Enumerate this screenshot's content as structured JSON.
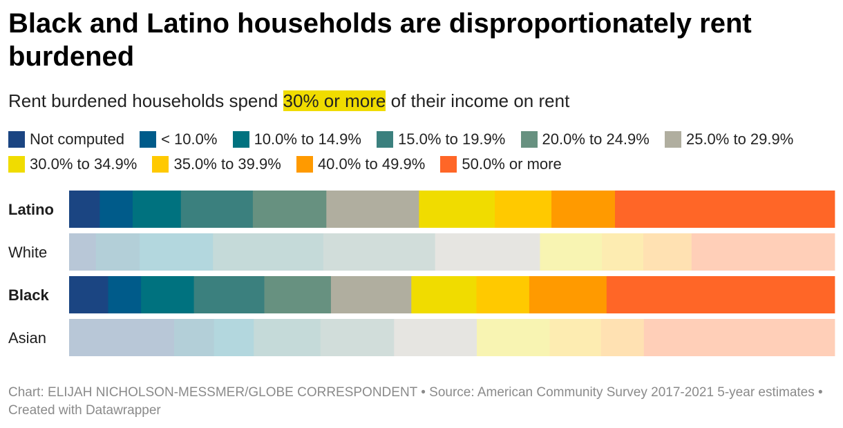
{
  "title": "Black and Latino households are disproportionately rent burdened",
  "subtitle": {
    "before": "Rent burdened households spend ",
    "highlight": "30% or more",
    "after": " of their income on rent",
    "highlight_color": "#f0dc00"
  },
  "legend": [
    {
      "label": "Not computed",
      "color": "#1b4582"
    },
    {
      "label": "< 10.0%",
      "color": "#005b8a"
    },
    {
      "label": "10.0% to 14.9%",
      "color": "#00727f"
    },
    {
      "label": "15.0% to 19.9%",
      "color": "#3b807e"
    },
    {
      "label": "20.0% to 24.9%",
      "color": "#679180"
    },
    {
      "label": "25.0% to 29.9%",
      "color": "#b0ae9f"
    },
    {
      "label": "30.0% to 34.9%",
      "color": "#f0dc00"
    },
    {
      "label": "35.0% to 39.9%",
      "color": "#ffc900"
    },
    {
      "label": "40.0% to 49.9%",
      "color": "#ff9a00"
    },
    {
      "label": "50.0% or more",
      "color": "#ff6627"
    }
  ],
  "chart_data": {
    "type": "stacked-bar-100",
    "title": "Black and Latino households are disproportionately rent burdened",
    "subtitle": "Rent burdened households spend 30% or more of their income on rent",
    "categories_legend": [
      "Not computed",
      "< 10.0%",
      "10.0% to 14.9%",
      "15.0% to 19.9%",
      "20.0% to 24.9%",
      "25.0% to 29.9%",
      "30.0% to 34.9%",
      "35.0% to 39.9%",
      "40.0% to 49.9%",
      "50.0% or more"
    ],
    "rows": [
      {
        "label": "Latino",
        "bold": true,
        "highlighted": true,
        "values": [
          4.0,
          4.3,
          6.3,
          9.4,
          9.6,
          12.1,
          9.9,
          7.4,
          8.3,
          28.7
        ]
      },
      {
        "label": "White",
        "bold": false,
        "highlighted": false,
        "values": [
          3.5,
          5.7,
          9.6,
          14.4,
          14.6,
          13.7,
          8.1,
          5.4,
          6.3,
          18.7
        ]
      },
      {
        "label": "Black",
        "bold": true,
        "highlighted": true,
        "values": [
          5.1,
          4.3,
          6.9,
          9.2,
          8.7,
          10.5,
          8.5,
          6.9,
          10.1,
          29.8
        ]
      },
      {
        "label": "Asian",
        "bold": false,
        "highlighted": false,
        "values": [
          13.7,
          5.2,
          5.2,
          8.7,
          9.6,
          10.8,
          9.5,
          6.7,
          5.6,
          24.9
        ]
      }
    ],
    "xlim": [
      0,
      100
    ],
    "muted_colors": [
      "#b8c7d7",
      "#b3cfd8",
      "#b3d7de",
      "#c5dad9",
      "#d1ddda",
      "#e6e5e1",
      "#f8f4b2",
      "#fdecb1",
      "#ffe1b2",
      "#ffcfb8"
    ]
  },
  "footer": "Chart: ELIJAH NICHOLSON-MESSMER/GLOBE CORRESPONDENT • Source: American Community Survey 2017-2021 5-year estimates • Created with Datawrapper"
}
